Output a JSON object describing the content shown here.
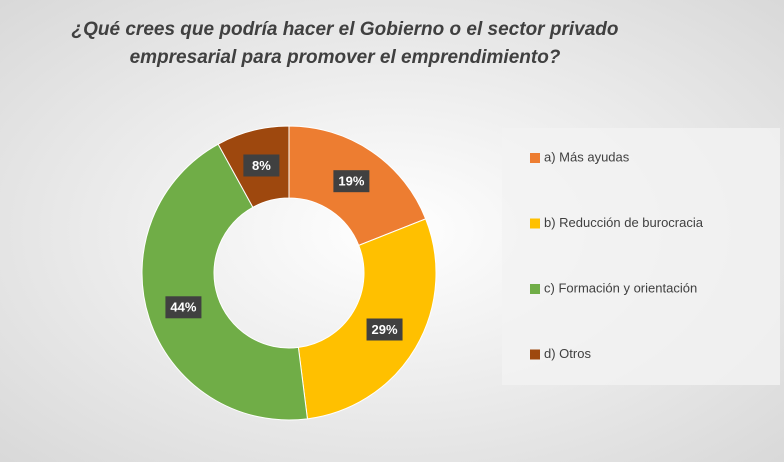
{
  "chart_data": {
    "type": "donut",
    "title": [
      "¿Qué crees que podría hacer el Gobierno o el sector privado",
      "empresarial para promover el emprendimiento?"
    ],
    "categories": [
      "a)   Más ayudas",
      "b)   Reducción de burocracia",
      "c)   Formación y orientación",
      "d)   Otros"
    ],
    "values": [
      19,
      29,
      44,
      8
    ],
    "value_labels": [
      "19%",
      "29%",
      "44%",
      "8%"
    ],
    "colors": [
      "#ED7D31",
      "#FFC000",
      "#70AD47",
      "#9E480E"
    ],
    "legend": "right"
  }
}
